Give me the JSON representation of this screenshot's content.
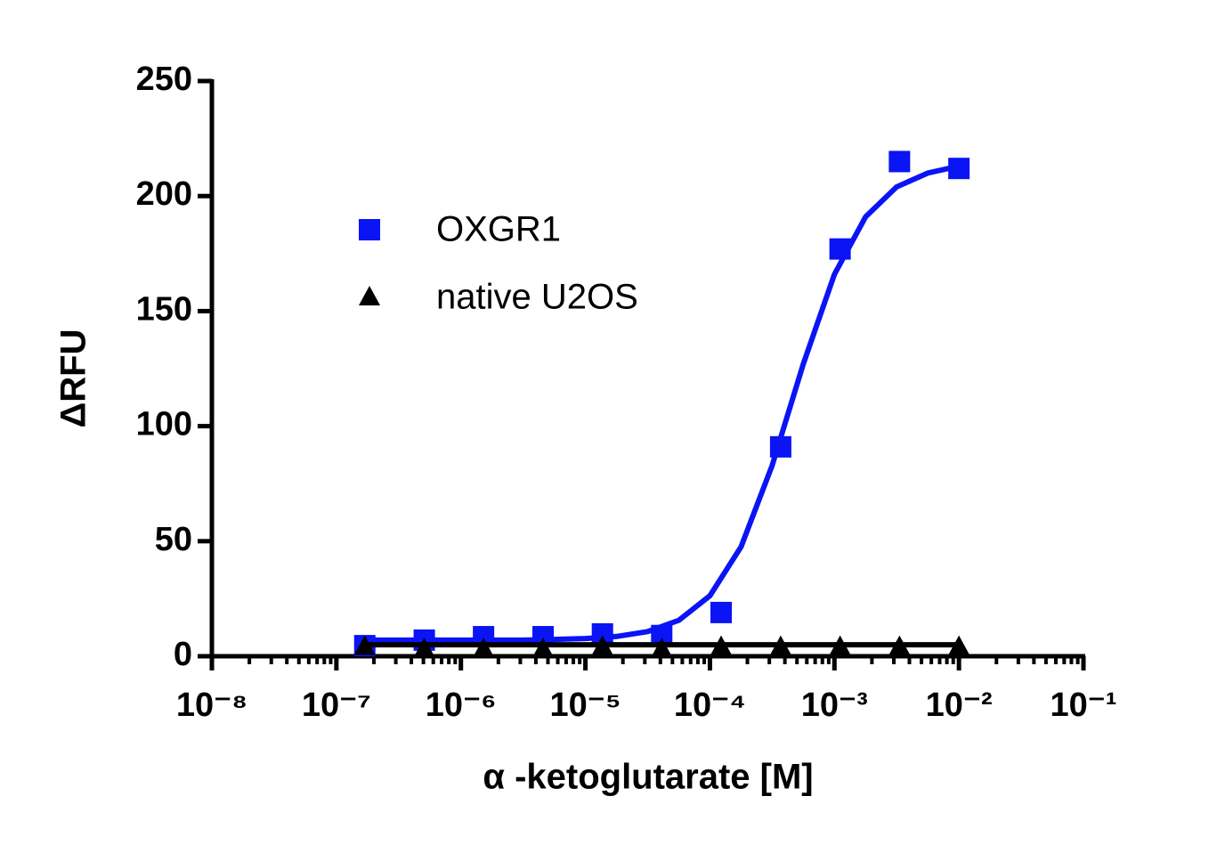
{
  "chart_data": {
    "type": "scatter",
    "x_label": "α -ketoglutarate [M]",
    "y_label": "ΔRFU",
    "x_log": true,
    "xlim": [
      1e-08,
      0.1
    ],
    "xticks": [
      {
        "value": 1e-08,
        "label": "10⁻⁸"
      },
      {
        "value": 1e-07,
        "label": "10⁻⁷"
      },
      {
        "value": 1e-06,
        "label": "10⁻⁶"
      },
      {
        "value": 1e-05,
        "label": "10⁻⁵"
      },
      {
        "value": 0.0001,
        "label": "10⁻⁴"
      },
      {
        "value": 0.001,
        "label": "10⁻³"
      },
      {
        "value": 0.01,
        "label": "10⁻²"
      },
      {
        "value": 0.1,
        "label": "10⁻¹"
      }
    ],
    "ylim": [
      0,
      250
    ],
    "yticks": [
      0,
      50,
      100,
      150,
      200,
      250
    ],
    "legend": "upper-left",
    "series": [
      {
        "name": "OXGR1",
        "color": "#0a14f5",
        "marker": "square",
        "x": [
          1.69e-07,
          5.08e-07,
          1.52e-06,
          4.57e-06,
          1.37e-05,
          4.1e-05,
          0.000123,
          0.00037,
          0.00111,
          0.00333,
          0.01
        ],
        "values": [
          4.6,
          7,
          8.5,
          8.5,
          9.7,
          9,
          19,
          91,
          177,
          215,
          212
        ],
        "fit": {
          "x": [
            1.78e-07,
            3.16e-07,
            5.62e-07,
            1e-06,
            1.78e-06,
            3.16e-06,
            5.62e-06,
            1e-05,
            1.78e-05,
            3.16e-05,
            5.62e-05,
            0.0001,
            0.000178,
            0.000316,
            0.000562,
            0.001,
            0.00178,
            0.00316,
            0.00562,
            0.01
          ],
          "values": [
            7,
            7,
            7,
            7,
            7,
            7,
            7.3,
            7.7,
            8.6,
            10.7,
            15.6,
            26.3,
            47.6,
            82.9,
            127,
            166,
            191,
            204,
            210,
            213
          ]
        }
      },
      {
        "name": "native U2OS",
        "color": "#000000",
        "marker": "triangle",
        "x": [
          1.69e-07,
          5.08e-07,
          1.52e-06,
          4.57e-06,
          1.37e-05,
          4.1e-05,
          0.000123,
          0.00037,
          0.00111,
          0.00333,
          0.01
        ],
        "values": [
          4,
          3,
          3,
          3,
          4,
          3,
          4,
          4,
          4,
          4,
          4
        ],
        "fit": {
          "x": [
            1.69e-07,
            0.01
          ],
          "values": [
            5,
            5
          ]
        }
      }
    ]
  }
}
